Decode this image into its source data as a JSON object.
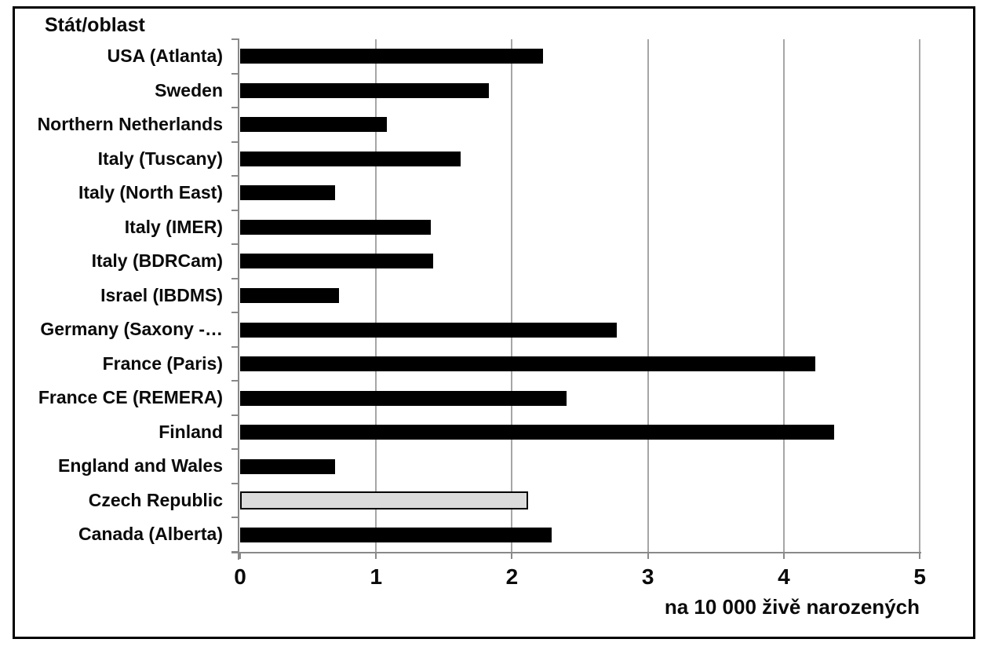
{
  "chart_data": {
    "type": "bar",
    "orientation": "horizontal",
    "title": "Stát/oblast",
    "xlabel": "na 10 000 živě narozených",
    "xlim": [
      0,
      5
    ],
    "xticks": [
      "0",
      "1",
      "2",
      "3",
      "4",
      "5"
    ],
    "grid": "vertical gridlines at each integer, no top/right border",
    "legend": "none",
    "categories": [
      "USA (Atlanta)",
      "Sweden",
      "Northern Netherlands",
      "Italy (Tuscany)",
      "Italy (North East)",
      "Italy (IMER)",
      "Italy (BDRCam)",
      "Israel (IBDMS)",
      "Germany (Saxony -…",
      "France (Paris)",
      "France CE (REMERA)",
      "Finland",
      "England and Wales",
      "Czech Republic",
      "Canada (Alberta)"
    ],
    "values": [
      2.23,
      1.83,
      1.08,
      1.62,
      0.7,
      1.4,
      1.42,
      0.73,
      2.77,
      4.23,
      2.4,
      4.37,
      0.7,
      2.12,
      2.29
    ],
    "highlighted_category": "Czech Republic",
    "colors": {
      "bar": "#000000",
      "highlight_fill": "#dcdcdc",
      "highlight_border": "#000000",
      "gridline": "#a6a6a6",
      "axis": "#898989",
      "text": "#0a0a0a",
      "frame_border": "#000000",
      "background": "#ffffff"
    }
  }
}
